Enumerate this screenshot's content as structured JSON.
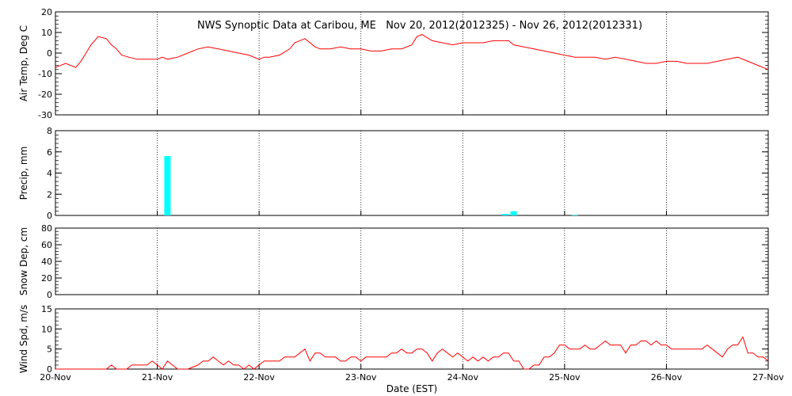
{
  "title": "NWS Synoptic Data at Caribou, ME   Nov 20, 2012(2012325) - Nov 26, 2012(2012331)",
  "xlabel": "Date (EST)",
  "x_ticks": [
    "20-Nov",
    "21-Nov",
    "22-Nov",
    "23-Nov",
    "24-Nov",
    "25-Nov",
    "26-Nov",
    "27-Nov"
  ],
  "colors": {
    "line": "#ff0000",
    "bars": "#00ffff",
    "axes": "#000000",
    "grid": "#000000"
  },
  "chart_data": [
    {
      "type": "line",
      "name": "air_temp",
      "ylabel": "Air Temp, Deg C",
      "ylim": [
        -30,
        20
      ],
      "yticks": [
        -30,
        -20,
        -10,
        0,
        10,
        20
      ],
      "xlim": [
        0,
        7
      ],
      "x_unit": "days since 20-Nov 00:00 EST",
      "grid": "vertical dotted at day boundaries",
      "x": [
        0,
        0.1,
        0.2,
        0.25,
        0.3,
        0.35,
        0.42,
        0.5,
        0.55,
        0.6,
        0.65,
        0.72,
        0.8,
        0.9,
        1.0,
        1.05,
        1.1,
        1.2,
        1.3,
        1.4,
        1.5,
        1.6,
        1.7,
        1.8,
        1.9,
        2.0,
        2.05,
        2.1,
        2.2,
        2.3,
        2.35,
        2.45,
        2.55,
        2.6,
        2.7,
        2.8,
        2.9,
        3.0,
        3.1,
        3.2,
        3.3,
        3.4,
        3.5,
        3.55,
        3.6,
        3.7,
        3.8,
        3.9,
        4.0,
        4.1,
        4.2,
        4.3,
        4.4,
        4.45,
        4.5,
        4.6,
        4.7,
        4.8,
        4.9,
        5.0,
        5.1,
        5.2,
        5.3,
        5.4,
        5.5,
        5.6,
        5.7,
        5.8,
        5.9,
        6.0,
        6.1,
        6.2,
        6.3,
        6.4,
        6.5,
        6.6,
        6.7,
        6.8,
        6.9,
        7.0
      ],
      "y": [
        -7,
        -5,
        -7,
        -4,
        0,
        4,
        8,
        7,
        4,
        2,
        -1,
        -2,
        -3,
        -3,
        -3,
        -2,
        -3,
        -2,
        0,
        2,
        3,
        2,
        1,
        0,
        -1,
        -3,
        -2,
        -2,
        -1,
        2,
        5,
        7,
        3,
        2,
        2,
        3,
        2,
        2,
        1,
        1,
        2,
        2,
        4,
        8,
        9,
        6,
        5,
        4,
        5,
        5,
        5,
        6,
        6,
        6,
        4,
        3,
        2,
        1,
        0,
        -1,
        -2,
        -2,
        -2,
        -3,
        -2,
        -3,
        -4,
        -5,
        -5,
        -4,
        -4,
        -5,
        -5,
        -5,
        -4,
        -3,
        -2,
        -4,
        -6,
        -8
      ]
    },
    {
      "type": "bar",
      "name": "precip",
      "ylabel": "Precip, mm",
      "ylim": [
        0,
        8
      ],
      "yticks": [
        0,
        2,
        4,
        6,
        8
      ],
      "xlim": [
        0,
        7
      ],
      "x_unit": "days since 20-Nov 00:00 EST",
      "x": [
        1.1,
        4.42,
        4.5,
        5.1
      ],
      "values": [
        5.6,
        0.15,
        0.4,
        0.05
      ]
    },
    {
      "type": "line",
      "name": "snow_depth",
      "ylabel": "Snow Dep, cm",
      "ylim": [
        0,
        80
      ],
      "yticks": [
        0,
        20,
        40,
        60,
        80
      ],
      "xlim": [
        0,
        7
      ],
      "x_unit": "days since 20-Nov 00:00 EST",
      "x": [],
      "y": []
    },
    {
      "type": "line",
      "name": "wind_speed",
      "ylabel": "Wind Spd, m/s",
      "ylim": [
        0,
        15
      ],
      "yticks": [
        0,
        5,
        10,
        15
      ],
      "xlim": [
        0,
        7
      ],
      "x_unit": "days since 20-Nov 00:00 EST",
      "x": [
        0.0,
        0.5,
        0.55,
        0.6,
        0.7,
        0.75,
        0.8,
        0.85,
        0.9,
        0.95,
        1.0,
        1.05,
        1.1,
        1.15,
        1.2,
        1.3,
        1.4,
        1.45,
        1.5,
        1.55,
        1.6,
        1.65,
        1.7,
        1.75,
        1.8,
        1.85,
        1.9,
        1.95,
        2.0,
        2.05,
        2.1,
        2.15,
        2.2,
        2.25,
        2.3,
        2.35,
        2.4,
        2.45,
        2.5,
        2.55,
        2.6,
        2.65,
        2.7,
        2.75,
        2.8,
        2.85,
        2.9,
        2.95,
        3.0,
        3.05,
        3.1,
        3.15,
        3.2,
        3.25,
        3.3,
        3.35,
        3.4,
        3.45,
        3.5,
        3.55,
        3.6,
        3.65,
        3.7,
        3.75,
        3.8,
        3.85,
        3.9,
        3.95,
        4.0,
        4.05,
        4.1,
        4.15,
        4.2,
        4.25,
        4.3,
        4.35,
        4.4,
        4.45,
        4.5,
        4.55,
        4.6,
        4.65,
        4.7,
        4.75,
        4.8,
        4.85,
        4.9,
        4.95,
        5.0,
        5.05,
        5.1,
        5.15,
        5.2,
        5.25,
        5.3,
        5.35,
        5.4,
        5.45,
        5.5,
        5.55,
        5.6,
        5.65,
        5.7,
        5.75,
        5.8,
        5.85,
        5.9,
        5.95,
        6.0,
        6.05,
        6.1,
        6.15,
        6.2,
        6.25,
        6.3,
        6.35,
        6.4,
        6.45,
        6.5,
        6.55,
        6.6,
        6.65,
        6.7,
        6.75,
        6.8,
        6.85,
        6.9,
        6.95,
        7.0
      ],
      "y": [
        0,
        0,
        1,
        0,
        0,
        1,
        1,
        1,
        1,
        2,
        1,
        0,
        2,
        1,
        0,
        0,
        1,
        2,
        2,
        3,
        2,
        1,
        2,
        1,
        1,
        0,
        1,
        0,
        1,
        2,
        2,
        2,
        2,
        3,
        3,
        3,
        4,
        5,
        2,
        4,
        4,
        3,
        3,
        3,
        2,
        2,
        3,
        3,
        2,
        3,
        3,
        3,
        3,
        3,
        4,
        4,
        5,
        4,
        4,
        5,
        5,
        4,
        2,
        4,
        5,
        4,
        3,
        4,
        3,
        2,
        3,
        2,
        3,
        2,
        3,
        3,
        4,
        4,
        2,
        2,
        0,
        0,
        1,
        1,
        3,
        3,
        4,
        6,
        6,
        5,
        5,
        5,
        6,
        5,
        5,
        6,
        7,
        6,
        6,
        6,
        4,
        6,
        6,
        7,
        7,
        6,
        7,
        6,
        6,
        5,
        5,
        5,
        5,
        5,
        5,
        5,
        6,
        5,
        4,
        3,
        5,
        6,
        6,
        8,
        4,
        4,
        3,
        3,
        2
      ]
    }
  ]
}
